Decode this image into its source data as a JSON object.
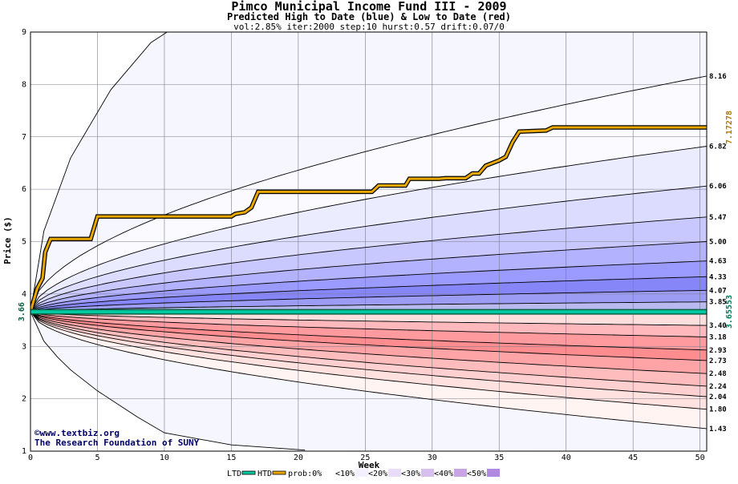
{
  "chart_data": {
    "type": "area",
    "title": "Pimco Municipal Income Fund III - 2009",
    "subtitle": "Predicted High to Date (blue) &  Low to Date (red)",
    "params": "vol:2.85% iter:2000 step:10 hurst:0.57 drift:0.07/0",
    "xlabel": "Week",
    "ylabel": "Price ($)",
    "xlim": [
      0,
      50.5
    ],
    "ylim": [
      1,
      9
    ],
    "x_ticks": [
      0,
      5,
      10,
      15,
      20,
      25,
      30,
      35,
      40,
      45,
      50
    ],
    "y_ticks": [
      1,
      2,
      3,
      4,
      5,
      6,
      7,
      8,
      9
    ],
    "grid": true,
    "start_price": 3.66,
    "start_label": "3.66",
    "high_band_end_values": [
      8.16,
      6.82,
      6.06,
      5.47,
      5.0,
      4.63,
      4.33,
      4.07,
      3.85
    ],
    "high_band_labels": [
      "8.16",
      "6.82",
      "6.06",
      "5.47",
      "5.00",
      "4.63",
      "4.33",
      "4.07",
      "3.85"
    ],
    "low_band_end_values": [
      3.4,
      3.18,
      2.93,
      2.73,
      2.48,
      2.24,
      2.04,
      1.8,
      1.43
    ],
    "low_band_labels": [
      "3.40",
      "3.18",
      "2.93",
      "2.73",
      "2.48",
      "2.24",
      "2.04",
      "1.80",
      "1.43"
    ],
    "outer_envelope": {
      "upper_x": [
        0,
        1,
        3,
        6,
        9,
        10.2
      ],
      "upper_y": [
        3.66,
        5.2,
        6.6,
        7.9,
        8.8,
        9.0
      ],
      "lower_x": [
        0,
        1,
        2,
        3,
        5,
        8,
        10,
        15,
        20.5
      ],
      "lower_y": [
        3.66,
        3.1,
        2.8,
        2.55,
        2.15,
        1.65,
        1.35,
        1.12,
        1.02
      ]
    },
    "series": [
      {
        "name": "HTD",
        "color": "#e8a800",
        "x": [
          0,
          0.5,
          0.9,
          1.1,
          1.5,
          4.5,
          5.0,
          15.0,
          15.3,
          16.0,
          16.5,
          17.0,
          25.5,
          26.0,
          28.0,
          28.3,
          30.5,
          31.0,
          32.5,
          33.0,
          33.5,
          34.0,
          35.0,
          35.5,
          36.0,
          36.5,
          38.5,
          39.0,
          50.5
        ],
        "y": [
          3.66,
          4.1,
          4.3,
          4.8,
          5.05,
          5.05,
          5.48,
          5.48,
          5.53,
          5.56,
          5.65,
          5.95,
          5.95,
          6.07,
          6.07,
          6.2,
          6.2,
          6.21,
          6.21,
          6.3,
          6.3,
          6.45,
          6.55,
          6.62,
          6.9,
          7.1,
          7.12,
          7.18,
          7.18
        ]
      },
      {
        "name": "LTD",
        "color": "#00c8a0",
        "x": [
          0,
          50.5
        ],
        "y": [
          3.66,
          3.66
        ]
      }
    ],
    "right_labels": {
      "htd_value": "7.17278",
      "ltd_value": "3.65553"
    },
    "band_colors": {
      "high": [
        "#fafaff",
        "#ececff",
        "#dcdcff",
        "#c8c8ff",
        "#b2b2ff",
        "#9a9aff",
        "#8686f8",
        "#9c9cf4",
        "#babaf0"
      ],
      "low": [
        "#fff4f2",
        "#ffe2e0",
        "#ffd0cf",
        "#ffbcbc",
        "#ffa4a6",
        "#ff8c8f",
        "#ff9a9e",
        "#ffb8bc",
        "#ffdede"
      ]
    },
    "legend": [
      {
        "label": "LTD",
        "color": "#00c8a0",
        "kind": "line"
      },
      {
        "label": "HTD",
        "color": "#e8a800",
        "kind": "line"
      },
      {
        "label": "prob:0%",
        "color": "#ffffff",
        "kind": "swatch"
      },
      {
        "label": "<10%",
        "color": "#f4f0ff",
        "kind": "swatch"
      },
      {
        "label": "<20%",
        "color": "#e8dcf8",
        "kind": "swatch"
      },
      {
        "label": "<30%",
        "color": "#d8c0ee",
        "kind": "swatch"
      },
      {
        "label": "<40%",
        "color": "#c8a4e4",
        "kind": "swatch"
      },
      {
        "label": "<50%",
        "color": "#b08ae0",
        "kind": "swatch"
      }
    ],
    "credit": [
      "©www.textbiz.org",
      "The Research Foundation of SUNY"
    ]
  }
}
